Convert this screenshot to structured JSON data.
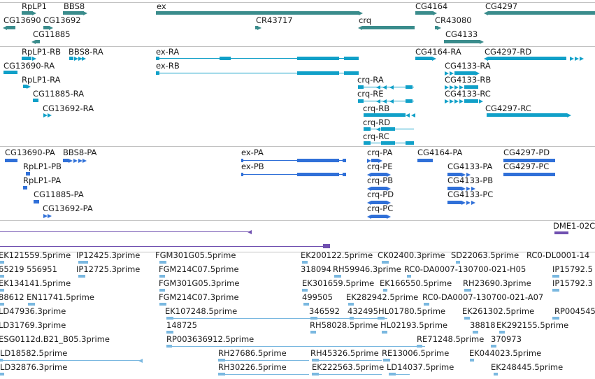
{
  "colors": {
    "track_gene": "#3a8c8c",
    "track_transcript": "#10a0c8",
    "track_protein": "#3070d8",
    "track_repeat": "#7050b0",
    "track_est": "#7ab8e0",
    "separator": "#c2c2c2",
    "text": "#1b1b1b"
  },
  "tracks": [
    {
      "name": "genes",
      "color": "#3a8c8c",
      "labels": [
        {
          "text": "RpLP1"
        },
        {
          "text": "BBS8"
        },
        {
          "text": "ex"
        },
        {
          "text": "CG4164"
        },
        {
          "text": "CG4297"
        },
        {
          "text": "CG13690"
        },
        {
          "text": "CG13692"
        },
        {
          "text": "CR43717"
        },
        {
          "text": "crq"
        },
        {
          "text": "CR43080"
        },
        {
          "text": "CG11885"
        },
        {
          "text": "CG4133"
        }
      ],
      "features": [
        {
          "name": "RpLP1",
          "strand": "+"
        },
        {
          "name": "BBS8",
          "strand": "+"
        },
        {
          "name": "ex",
          "strand": "+"
        },
        {
          "name": "CG4164",
          "strand": "+"
        },
        {
          "name": "CG4297",
          "strand": "-"
        },
        {
          "name": "CG13690",
          "strand": "-"
        },
        {
          "name": "CG13692",
          "strand": "+"
        },
        {
          "name": "CR43717",
          "strand": "+"
        },
        {
          "name": "crq",
          "strand": "-"
        },
        {
          "name": "CR43080",
          "strand": "+"
        },
        {
          "name": "CG11885",
          "strand": "-"
        },
        {
          "name": "CG4133",
          "strand": "+"
        }
      ]
    },
    {
      "name": "transcripts",
      "color": "#10a0c8",
      "labels": [
        {
          "text": "RpLP1-RB"
        },
        {
          "text": "BBS8-RA"
        },
        {
          "text": "ex-RA"
        },
        {
          "text": "CG4164-RA"
        },
        {
          "text": "CG4297-RD"
        },
        {
          "text": "CG13690-RA"
        },
        {
          "text": "ex-RB"
        },
        {
          "text": "CG4133-RA"
        },
        {
          "text": "RpLP1-RA"
        },
        {
          "text": "crq-RA"
        },
        {
          "text": "CG4133-RB"
        },
        {
          "text": "CG11885-RA"
        },
        {
          "text": "crq-RE"
        },
        {
          "text": "CG4133-RC"
        },
        {
          "text": "CG13692-RA"
        },
        {
          "text": "crq-RB"
        },
        {
          "text": "CG4297-RC"
        },
        {
          "text": "crq-RD"
        },
        {
          "text": "crq-RC"
        }
      ]
    },
    {
      "name": "proteins",
      "color": "#3070d8",
      "labels": [
        {
          "text": "CG13690-PA"
        },
        {
          "text": "BBS8-PA"
        },
        {
          "text": "ex-PA"
        },
        {
          "text": "crq-PA"
        },
        {
          "text": "CG4164-PA"
        },
        {
          "text": "CG4297-PD"
        },
        {
          "text": "RpLP1-PB"
        },
        {
          "text": "ex-PB"
        },
        {
          "text": "crq-PE"
        },
        {
          "text": "CG4133-PA"
        },
        {
          "text": "CG4297-PC"
        },
        {
          "text": "RpLP1-PA"
        },
        {
          "text": "crq-PB"
        },
        {
          "text": "CG4133-PB"
        },
        {
          "text": "CG11885-PA"
        },
        {
          "text": "crq-PD"
        },
        {
          "text": "CG4133-PC"
        },
        {
          "text": "CG13692-PA"
        },
        {
          "text": "crq-PC"
        }
      ]
    },
    {
      "name": "repeats",
      "color": "#7050b0",
      "labels": [
        {
          "text": "DME1-02C"
        }
      ]
    },
    {
      "name": "ests",
      "color": "#7ab8e0",
      "labels": [
        {
          "text": "EK121559.5prime"
        },
        {
          "text": "IP12425.3prime"
        },
        {
          "text": "FGM301G05.5prime"
        },
        {
          "text": "EK200122.5prime"
        },
        {
          "text": "CK02400.3prime"
        },
        {
          "text": "SD22063.5prime"
        },
        {
          "text": "RC0-DL0001-14"
        },
        {
          "text": "65219"
        },
        {
          "text": "556951"
        },
        {
          "text": "IP12725.3prime"
        },
        {
          "text": "FGM214C07.5prime"
        },
        {
          "text": "318094"
        },
        {
          "text": "RH59946.3prime"
        },
        {
          "text": "RC0-DA0007-130700-021-H05"
        },
        {
          "text": "IP15792.5"
        },
        {
          "text": "EK134141.5prime"
        },
        {
          "text": "FGM301G05.3prime"
        },
        {
          "text": "EK301659.5prime"
        },
        {
          "text": "EK166550.5prime"
        },
        {
          "text": "RH23690.3prime"
        },
        {
          "text": "IP15792.3"
        },
        {
          "text": "88612"
        },
        {
          "text": "EN11741.5prime"
        },
        {
          "text": "FGM214C07.3prime"
        },
        {
          "text": "499505"
        },
        {
          "text": "EK282942.5prime"
        },
        {
          "text": "RC0-DA0007-130700-021-A07"
        },
        {
          "text": "LD47936.3prime"
        },
        {
          "text": "EK107248.5prime"
        },
        {
          "text": "346592"
        },
        {
          "text": "432495"
        },
        {
          "text": "HL01780.5prime"
        },
        {
          "text": "EK261302.5prime"
        },
        {
          "text": "RP004545"
        },
        {
          "text": "LD31769.3prime"
        },
        {
          "text": "148725"
        },
        {
          "text": "RH58028.5prime"
        },
        {
          "text": "HL02193.5prime"
        },
        {
          "text": "38818"
        },
        {
          "text": "EK292155.5prime"
        },
        {
          "text": "ESG0112d.B21_B05.3prime"
        },
        {
          "text": "RP003636912.5prime"
        },
        {
          "text": "RE71248.5prime"
        },
        {
          "text": "370973"
        },
        {
          "text": "LD18582.5prime"
        },
        {
          "text": "RH27686.5prime"
        },
        {
          "text": "RH45326.5prime"
        },
        {
          "text": "RE13006.5prime"
        },
        {
          "text": "EK044023.5prime"
        },
        {
          "text": "LD32876.3prime"
        },
        {
          "text": "RH30226.5prime"
        },
        {
          "text": "EK222563.5prime"
        },
        {
          "text": "LD14037.5prime"
        },
        {
          "text": "EK248445.5prime"
        }
      ]
    }
  ]
}
